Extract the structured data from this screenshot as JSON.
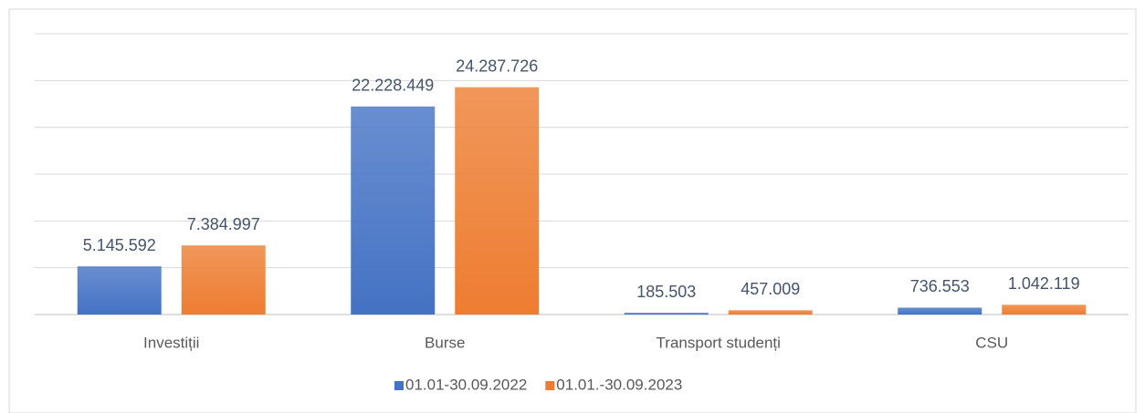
{
  "chart_data": {
    "type": "bar",
    "categories": [
      "Investiții",
      "Burse",
      "Transport studenți",
      "CSU"
    ],
    "series": [
      {
        "name": "01.01-30.09.2022",
        "color": "#4472c4",
        "values": [
          5145592,
          22228449,
          185503,
          736553
        ],
        "value_labels": [
          "5.145.592",
          "22.228.449",
          "185.503",
          "736.553"
        ]
      },
      {
        "name": "01.01.-30.09.2023",
        "color": "#ed7d31",
        "values": [
          7384997,
          24287726,
          457009,
          1042119
        ],
        "value_labels": [
          "7.384.997",
          "24.287.726",
          "457.009",
          "1.042.119"
        ]
      }
    ],
    "ylim": [
      0,
      30000000
    ],
    "yticks": [
      0,
      5000000,
      10000000,
      15000000,
      20000000,
      25000000,
      30000000
    ],
    "grid": true,
    "legend": "bottom"
  }
}
